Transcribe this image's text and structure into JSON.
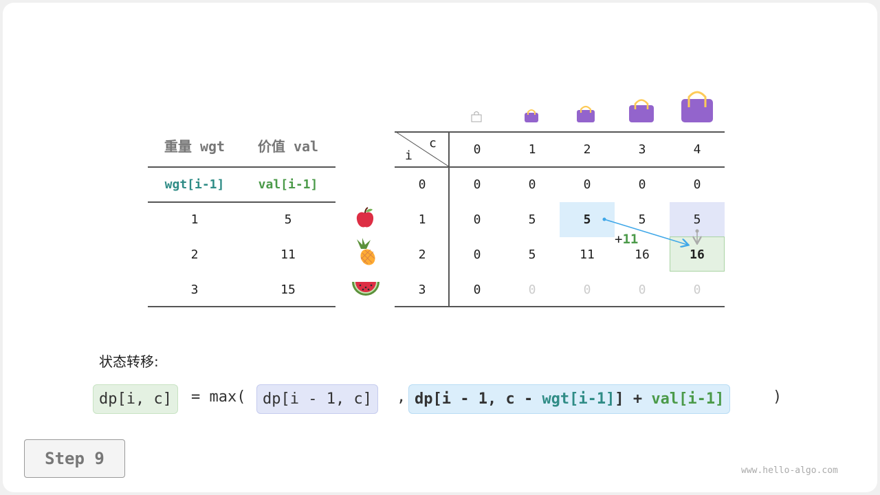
{
  "left_table": {
    "headers": [
      "重量 wgt",
      "价值 val"
    ],
    "subheaders": [
      "wgt[i-1]",
      "val[i-1]"
    ],
    "rows": [
      [
        "1",
        "5"
      ],
      [
        "2",
        "11"
      ],
      [
        "3",
        "15"
      ]
    ],
    "items": [
      "apple-icon",
      "pineapple-icon",
      "watermelon-icon"
    ]
  },
  "dp_table": {
    "corner_c": "c",
    "corner_i": "i",
    "col_headers": [
      "0",
      "1",
      "2",
      "3",
      "4"
    ],
    "row_headers": [
      "0",
      "1",
      "2",
      "3"
    ],
    "rows": [
      [
        "0",
        "0",
        "0",
        "0",
        "0"
      ],
      [
        "0",
        "5",
        "5",
        "5",
        "5"
      ],
      [
        "0",
        "5",
        "11",
        "16",
        "16"
      ],
      [
        "0",
        "0",
        "0",
        "0",
        "0"
      ]
    ],
    "bag_icons": [
      "bag-icon-0",
      "bag-icon-1",
      "bag-icon-2",
      "bag-icon-3",
      "bag-icon-4"
    ],
    "add_label_plus": "+",
    "add_label_value": "11"
  },
  "formula": {
    "label": "状态转移:",
    "lhs": "dp[i, c]",
    "eq": "= max(",
    "arg1": "dp[i - 1, c]",
    "comma": ",",
    "arg2_a": "dp[i - 1, c - ",
    "arg2_wgt": "wgt[i-1]",
    "arg2_b": "] + ",
    "arg2_val": "val[i-1]",
    "close": ")"
  },
  "step_button": "Step 9",
  "watermark": "www.hello-algo.com",
  "colors": {
    "teal": "#2f8c86",
    "green": "#4b9a49",
    "blue_highlight": "#dbeefb",
    "purple_highlight": "#e2e6f8",
    "green_highlight": "#e4f1e2",
    "arrow": "#3fa7e8",
    "bag": "#9364cc"
  }
}
